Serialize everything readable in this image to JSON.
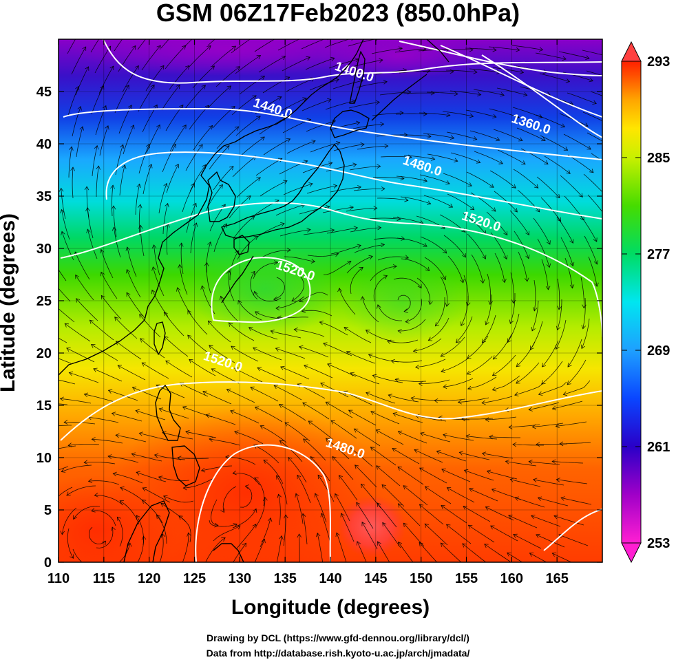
{
  "title": "GSM 06Z17Feb2023 (850.0hPa)",
  "xlabel": "Longitude (degrees)",
  "ylabel": "Latitude  (degrees)",
  "credits": [
    "Drawing by DCL (https://www.gfd-dennou.org/library/dcl/)",
    "Data from http://database.rish.kyoto-u.ac.jp/arch/jmadata/"
  ],
  "chart_data": {
    "type": "heatmap",
    "projection": "equirectangular",
    "xlim": [
      110,
      170
    ],
    "ylim": [
      0,
      50
    ],
    "x_ticks": [
      110,
      115,
      120,
      125,
      130,
      135,
      140,
      145,
      150,
      155,
      160,
      165
    ],
    "y_ticks": [
      0,
      5,
      10,
      15,
      20,
      25,
      30,
      35,
      40,
      45
    ],
    "grid": true,
    "colorbar": {
      "position": "right",
      "range": [
        253,
        293
      ],
      "ticks": [
        253,
        261,
        269,
        277,
        285,
        293
      ],
      "extend": "both",
      "colors": [
        "#ff1fd2",
        "#a000c8",
        "#2a00c8",
        "#0a46ff",
        "#1ea0ff",
        "#00e6f0",
        "#00dc64",
        "#46dc00",
        "#c8f000",
        "#ffe600",
        "#ffa500",
        "#ff5000",
        "#ff2000"
      ]
    },
    "contour_labels": [
      {
        "text": "1400.0",
        "lon": 142.5,
        "lat": 46.5
      },
      {
        "text": "1440.0",
        "lon": 133.5,
        "lat": 43.0
      },
      {
        "text": "1360.0",
        "lon": 162.0,
        "lat": 41.5
      },
      {
        "text": "1480.0",
        "lon": 150.0,
        "lat": 37.5
      },
      {
        "text": "1520.0",
        "lon": 156.5,
        "lat": 32.2
      },
      {
        "text": "1520.0",
        "lon": 136.0,
        "lat": 27.5
      },
      {
        "text": "1520.0",
        "lon": 128.0,
        "lat": 18.8
      },
      {
        "text": "1480.0",
        "lon": 141.5,
        "lat": 10.5
      }
    ]
  }
}
